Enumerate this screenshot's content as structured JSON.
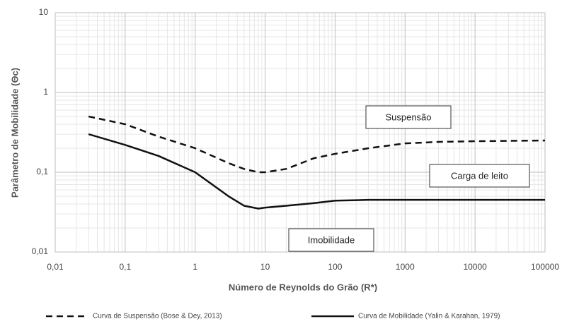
{
  "chart_data": {
    "type": "line",
    "xlabel": "Número de Reynolds do Grão (R*)",
    "ylabel": "Parâmetro de Mobilidade (Θc)",
    "log_x": true,
    "log_y": true,
    "grid": true,
    "legend": "bottom",
    "xlim": [
      0.01,
      100000
    ],
    "ylim": [
      0.01,
      10
    ],
    "xticks": [
      {
        "value": 0.01,
        "label": "0,01"
      },
      {
        "value": 0.1,
        "label": "0,1"
      },
      1,
      10,
      100,
      1000,
      10000,
      100000
    ],
    "yticks": [
      {
        "value": 0.01,
        "label": "0,01"
      },
      {
        "value": 0.1,
        "label": "0,1"
      },
      1,
      10
    ],
    "x": [
      0.03,
      0.1,
      0.3,
      1,
      3,
      5,
      8,
      10,
      20,
      50,
      100,
      300,
      1000,
      3000,
      10000,
      100000
    ],
    "series": [
      {
        "name": "Curva de Suspensão (Bose & Dey, 2013)",
        "color": "#111111",
        "dash": true,
        "values": [
          0.5,
          0.4,
          0.28,
          0.2,
          0.13,
          0.11,
          0.1,
          0.1,
          0.11,
          0.15,
          0.17,
          0.2,
          0.23,
          0.24,
          0.245,
          0.25
        ]
      },
      {
        "name": "Curva de Mobilidade (Yalin & Karahan, 1979)",
        "color": "#111111",
        "dash": false,
        "values": [
          0.3,
          0.22,
          0.16,
          0.1,
          0.05,
          0.038,
          0.035,
          0.036,
          0.038,
          0.041,
          0.044,
          0.045,
          0.045,
          0.045,
          0.045,
          0.045
        ]
      }
    ],
    "annotations": [
      "Suspensão",
      "Carga de leito",
      "Imobilidade"
    ]
  }
}
